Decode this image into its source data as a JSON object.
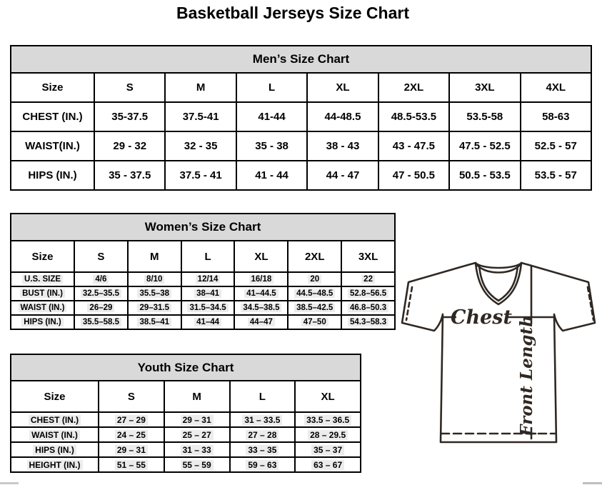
{
  "page_title": "Basketball Jerseys Size Chart",
  "colors": {
    "table_header_bg": "#d9d9d9",
    "table_border": "#000000",
    "diagram_line": "#2f2823",
    "highlight_bg": "#ececec"
  },
  "tables": [
    {
      "id": "mens",
      "title": "Men’s Size Chart",
      "columns": [
        "Size",
        "S",
        "M",
        "L",
        "XL",
        "2XL",
        "3XL",
        "4XL"
      ],
      "rows": [
        {
          "label": "CHEST (IN.)",
          "values": [
            "35-37.5",
            "37.5-41",
            "41-44",
            "44-48.5",
            "48.5-53.5",
            "53.5-58",
            "58-63"
          ]
        },
        {
          "label": "WAIST(IN.)",
          "values": [
            "29 - 32",
            "32 - 35",
            "35 - 38",
            "38 - 43",
            "43 - 47.5",
            "47.5 - 52.5",
            "52.5 - 57"
          ]
        },
        {
          "label": "HIPS (IN.)",
          "values": [
            "35 - 37.5",
            "37.5 - 41",
            "41 - 44",
            "44 - 47",
            "47 - 50.5",
            "50.5 - 53.5",
            "53.5 - 57"
          ]
        }
      ]
    },
    {
      "id": "womens",
      "title": "Women’s Size Chart",
      "columns": [
        "Size",
        "S",
        "M",
        "L",
        "XL",
        "2XL",
        "3XL"
      ],
      "rows": [
        {
          "label": "U.S. SIZE",
          "values": [
            "4/6",
            "8/10",
            "12/14",
            "16/18",
            "20",
            "22"
          ]
        },
        {
          "label": "BUST (IN.)",
          "values": [
            "32.5–35.5",
            "35.5–38",
            "38–41",
            "41–44.5",
            "44.5–48.5",
            "52.8–56.5"
          ]
        },
        {
          "label": "WAIST (IN.)",
          "values": [
            "26–29",
            "29–31.5",
            "31.5–34.5",
            "34.5–38.5",
            "38.5–42.5",
            "46.8–50.3"
          ]
        },
        {
          "label": "HIPS (IN.)",
          "values": [
            "35.5–58.5",
            "38.5–41",
            "41–44",
            "44–47",
            "47–50",
            "54.3–58.3"
          ]
        }
      ]
    },
    {
      "id": "youth",
      "title": "Youth Size Chart",
      "columns": [
        "Size",
        "S",
        "M",
        "L",
        "XL"
      ],
      "rows": [
        {
          "label": "CHEST (IN.)",
          "values": [
            "27 – 29",
            "29 – 31",
            "31 – 33.5",
            "33.5 – 36.5"
          ]
        },
        {
          "label": "WAIST (IN.)",
          "values": [
            "24 – 25",
            "25 – 27",
            "27 – 28",
            "28 – 29.5"
          ]
        },
        {
          "label": "HIPS (IN.)",
          "values": [
            "29 – 31",
            "31 – 33",
            "33 – 35",
            "35 – 37"
          ]
        },
        {
          "label": "HEIGHT (IN.)",
          "values": [
            "51 – 55",
            "55 – 59",
            "59 – 63",
            "63 – 67"
          ]
        }
      ]
    }
  ],
  "diagram": {
    "chest_label": "Chest",
    "front_length_label": "Front Length"
  }
}
